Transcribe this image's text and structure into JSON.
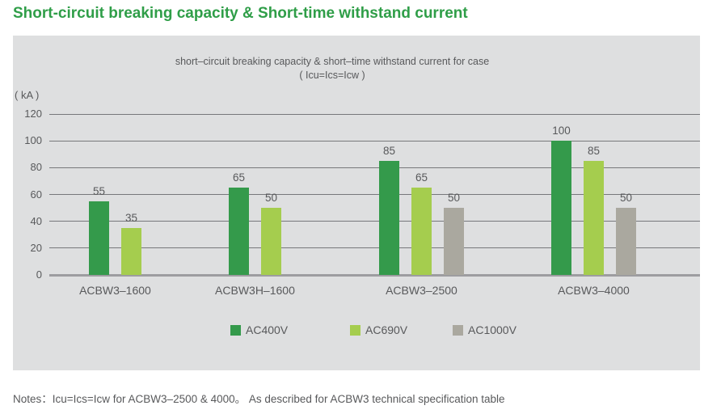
{
  "page": {
    "title": "Short-circuit breaking capacity & Short-time withstand current"
  },
  "chart_data": {
    "type": "bar",
    "title": "short–circuit breaking capacity & short–time withstand current for case",
    "subtitle": "( Icu=Ics=Icw )",
    "unit_label": "( kA )",
    "ylabel": "kA",
    "ylim": [
      0,
      120
    ],
    "yticks": [
      120,
      100,
      80,
      60,
      40,
      20,
      0
    ],
    "grid": true,
    "legend_position": "bottom",
    "categories": [
      "ACBW3–1600",
      "ACBW3H–1600",
      "ACBW3–2500",
      "ACBW3–4000"
    ],
    "series": [
      {
        "name": "AC400V",
        "color": "#349a4b",
        "values": [
          55,
          65,
          85,
          100
        ]
      },
      {
        "name": "AC690V",
        "color": "#a5cd4e",
        "values": [
          35,
          50,
          65,
          85
        ]
      },
      {
        "name": "AC1000V",
        "color": "#aaa89f",
        "values": [
          null,
          null,
          50,
          50
        ]
      }
    ]
  },
  "notes": "Notes：Icu=Ics=Icw for ACBW3–2500 & 4000。 As described for ACBW3 technical specification table",
  "colors": {
    "accent_green": "#2f9e48",
    "panel_background": "#dedfe0",
    "grid_line": "#77787b",
    "axis_line": "#9d9da0",
    "text": "#58595b"
  }
}
